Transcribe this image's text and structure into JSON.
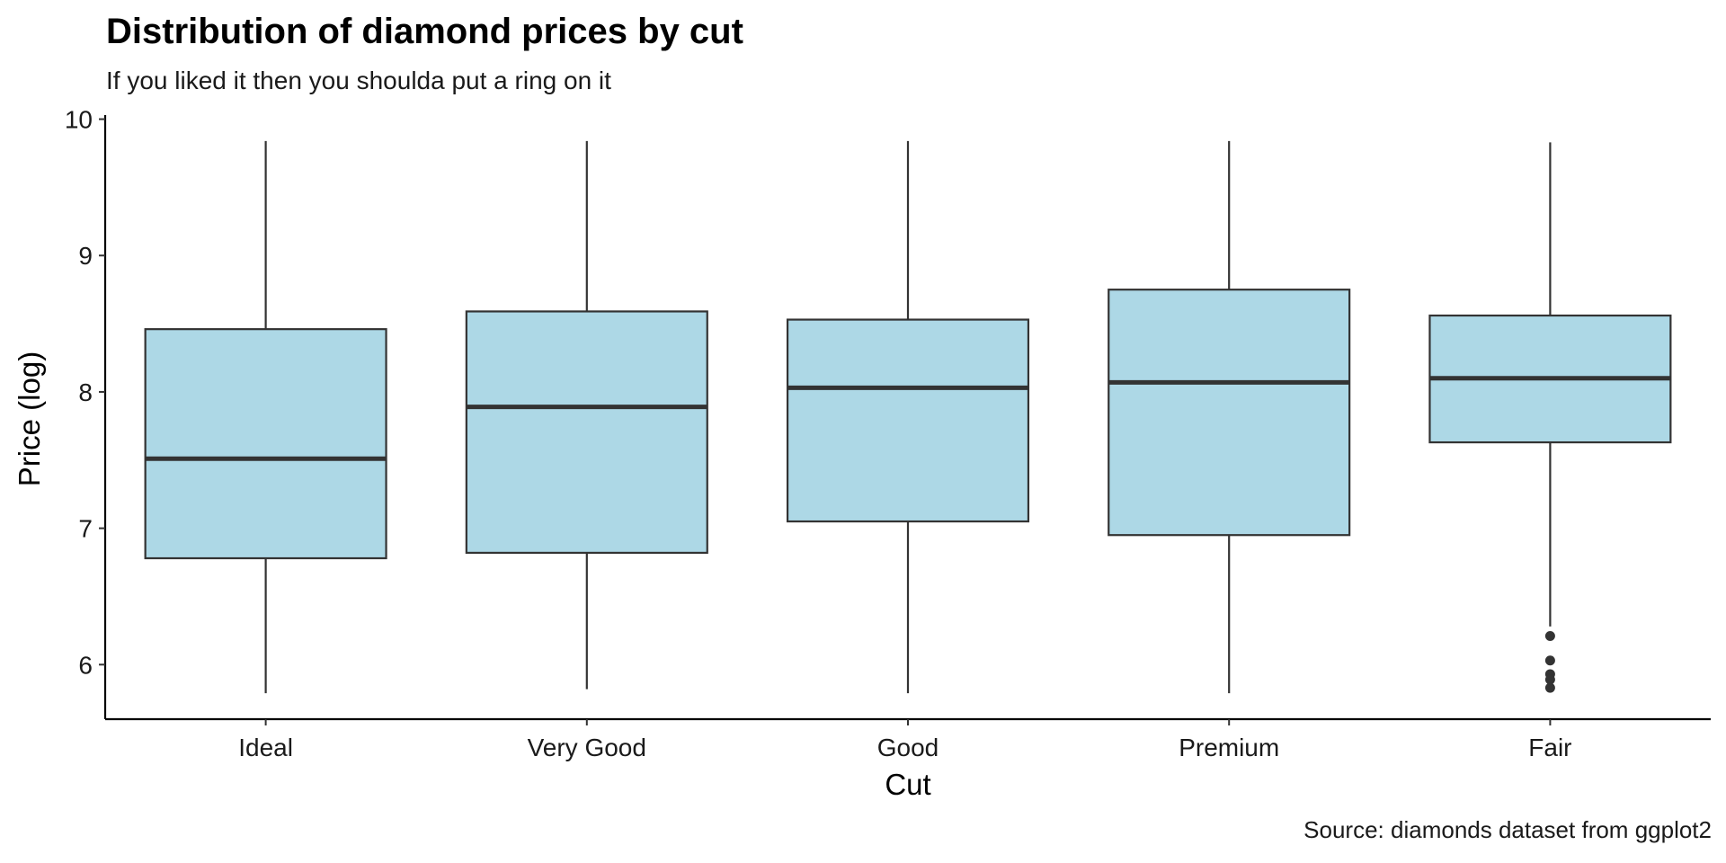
{
  "chart_data": {
    "type": "boxplot",
    "title": "Distribution of diamond prices by cut",
    "subtitle": "If you liked it then you shoulda put a ring on it",
    "caption": "Source: diamonds dataset from ggplot2",
    "xlabel": "Cut",
    "ylabel": "Price (log)",
    "ylim": [
      5.6,
      10.03
    ],
    "yticks": [
      6,
      7,
      8,
      9,
      10
    ],
    "categories": [
      "Ideal",
      "Very Good",
      "Good",
      "Premium",
      "Fair"
    ],
    "boxes": [
      {
        "category": "Ideal",
        "whisker_low": 5.79,
        "q1": 6.78,
        "median": 7.51,
        "q3": 8.46,
        "whisker_high": 9.84,
        "outliers": []
      },
      {
        "category": "Very Good",
        "whisker_low": 5.82,
        "q1": 6.82,
        "median": 7.89,
        "q3": 8.59,
        "whisker_high": 9.84,
        "outliers": []
      },
      {
        "category": "Good",
        "whisker_low": 5.79,
        "q1": 7.05,
        "median": 8.03,
        "q3": 8.53,
        "whisker_high": 9.84,
        "outliers": []
      },
      {
        "category": "Premium",
        "whisker_low": 5.79,
        "q1": 6.95,
        "median": 8.07,
        "q3": 8.75,
        "whisker_high": 9.84,
        "outliers": []
      },
      {
        "category": "Fair",
        "whisker_low": 6.28,
        "q1": 7.63,
        "median": 8.1,
        "q3": 8.56,
        "whisker_high": 9.83,
        "outliers": [
          6.21,
          6.03,
          5.93,
          5.89,
          5.83
        ]
      }
    ],
    "box_fill": "#add8e6",
    "line_color": "#333333",
    "grid": false,
    "legend": "none"
  }
}
